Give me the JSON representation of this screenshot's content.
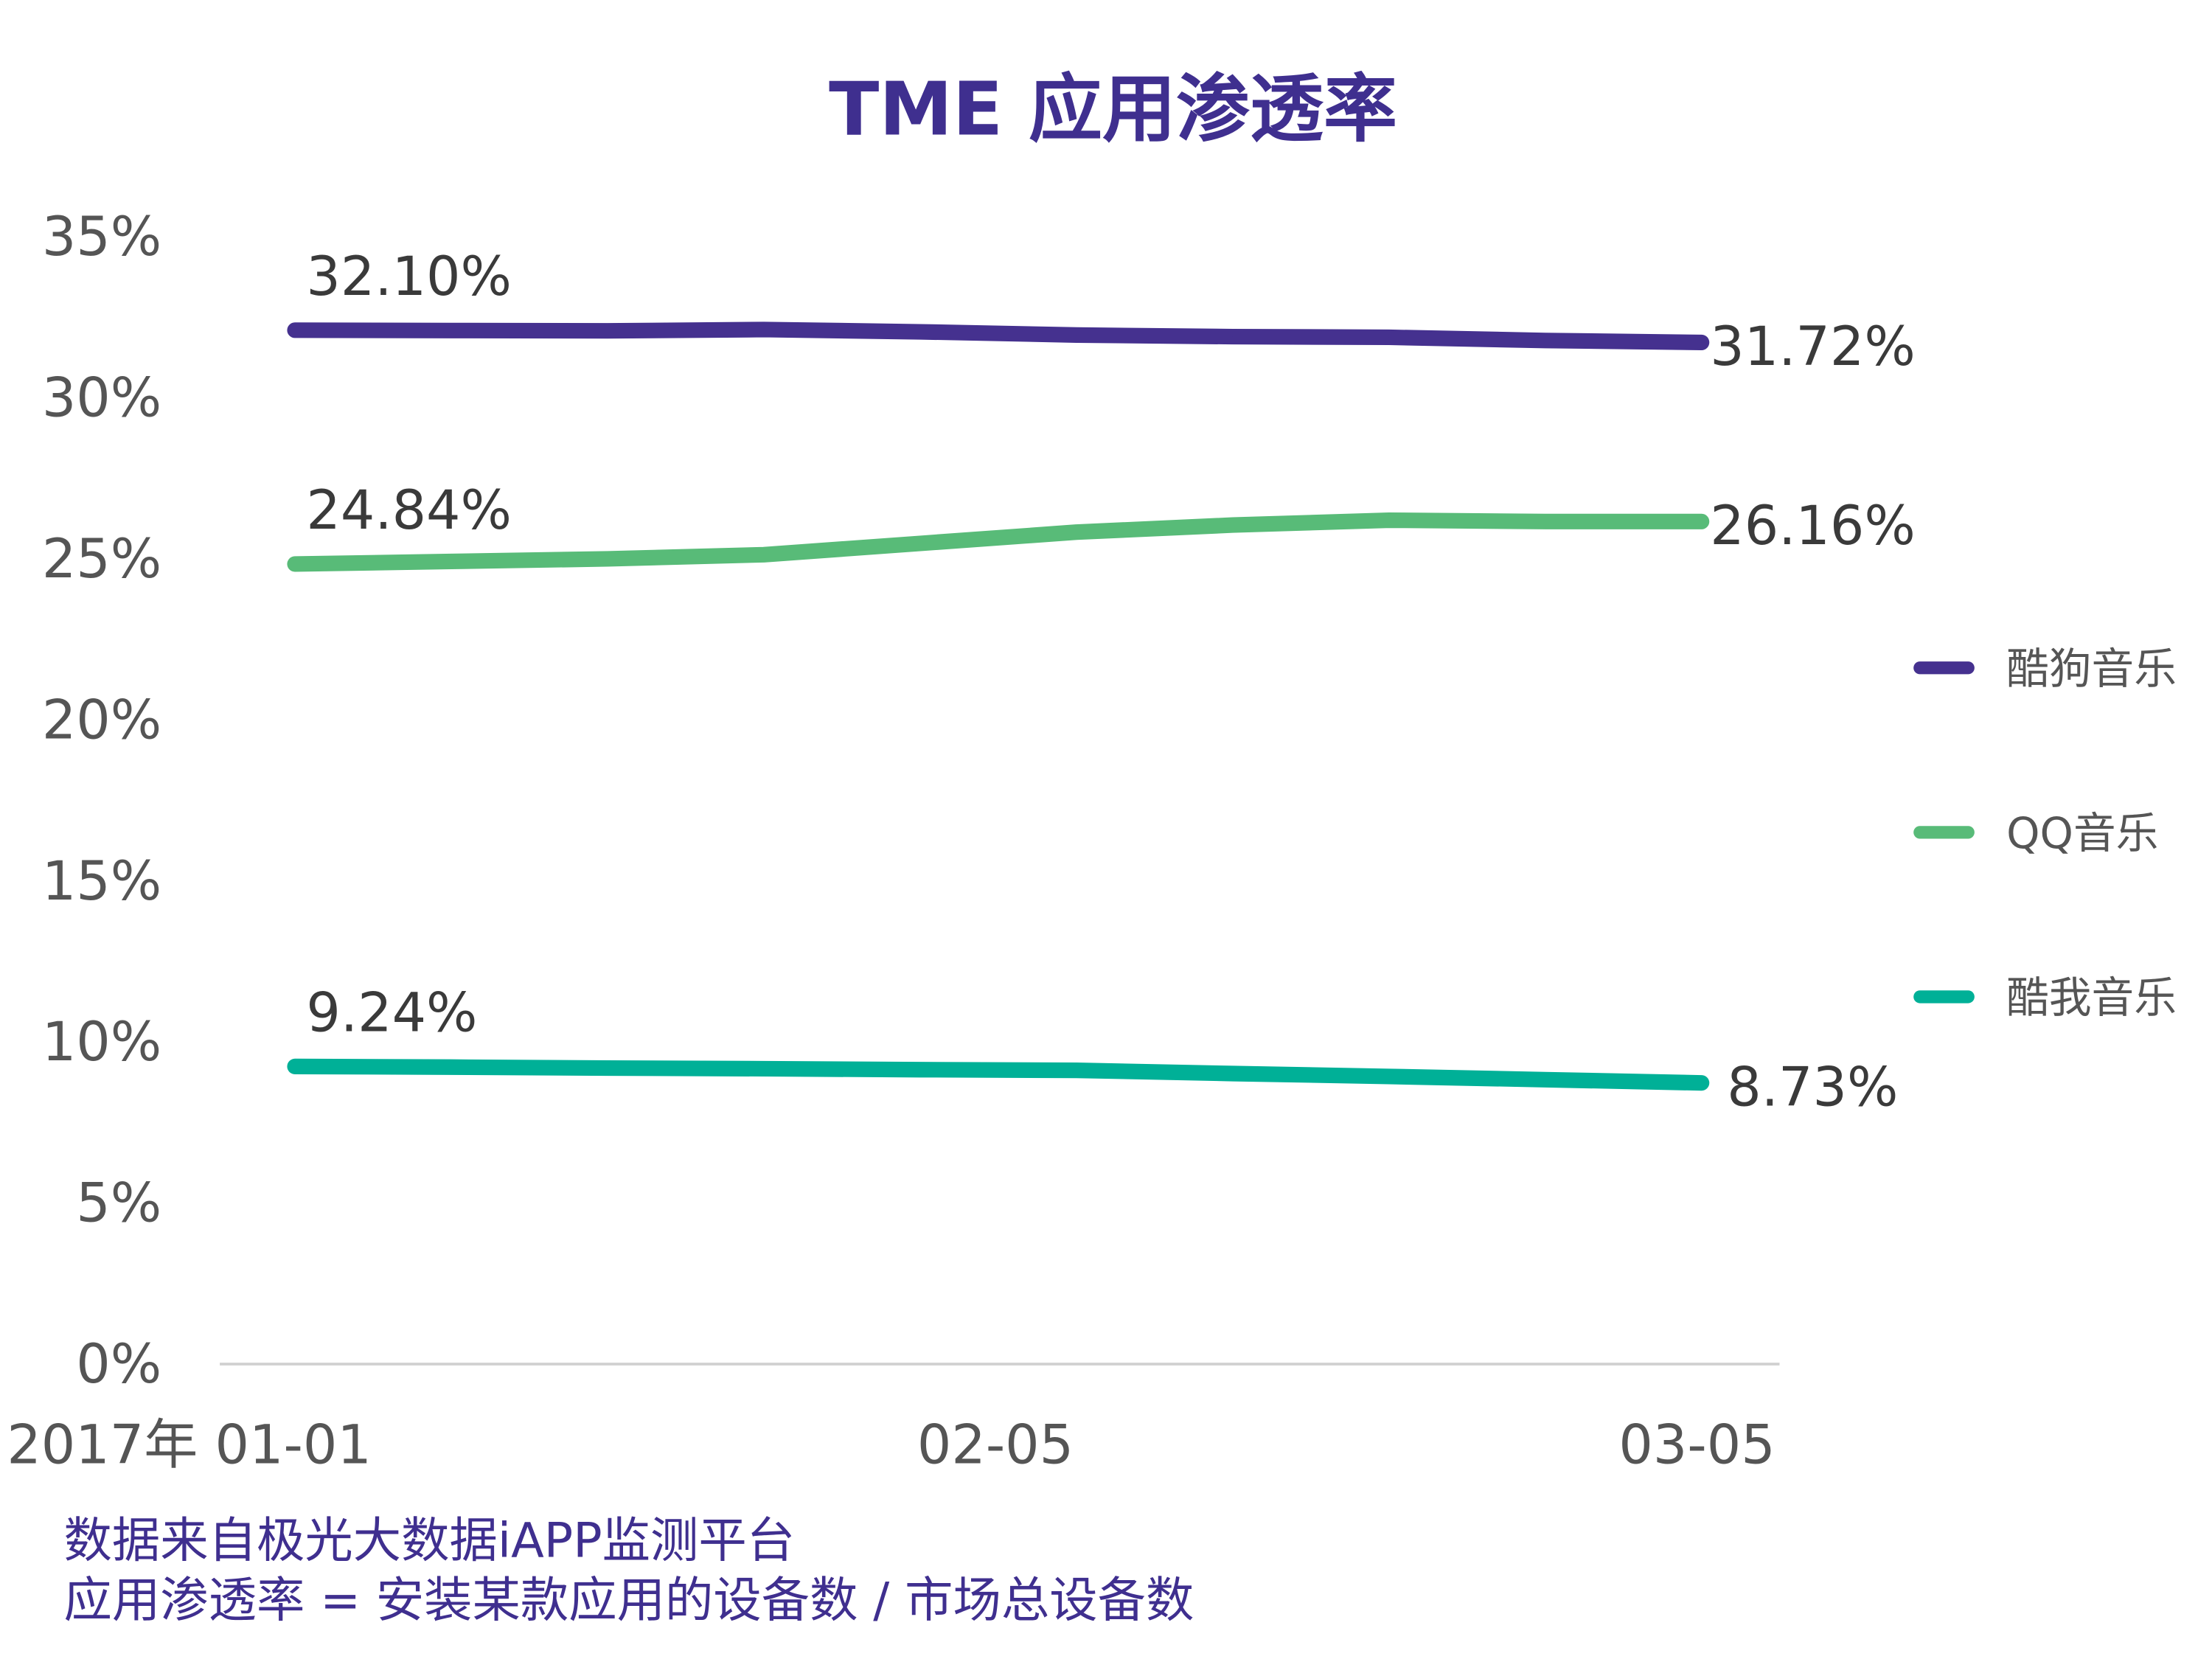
{
  "chart_data": {
    "type": "line",
    "title": "TME 应用渗透率",
    "xlabel": "",
    "ylabel": "",
    "x": [
      "01-01",
      "01-08",
      "01-15",
      "01-22",
      "01-29",
      "02-05",
      "02-12",
      "02-19",
      "02-26",
      "03-05"
    ],
    "x_tick_labels": [
      {
        "x": "01-01",
        "label": "2017年 01-01"
      },
      {
        "x": "02-05",
        "label": "02-05"
      },
      {
        "x": "03-05",
        "label": "03-05"
      }
    ],
    "ylim": [
      0,
      35
    ],
    "y_ticks": [
      0,
      5,
      10,
      15,
      20,
      25,
      30,
      35
    ],
    "y_tick_labels": [
      "0%",
      "5%",
      "10%",
      "15%",
      "20%",
      "25%",
      "30%",
      "35%"
    ],
    "grid": false,
    "legend_position": "right",
    "series": [
      {
        "name": "酷狗音乐",
        "color": "#45318f",
        "values": [
          32.1,
          32.09,
          32.08,
          32.12,
          32.05,
          31.95,
          31.9,
          31.88,
          31.78,
          31.72
        ],
        "start_label": "32.10%",
        "end_label": "31.72%"
      },
      {
        "name": "QQ音乐",
        "color": "#58bb78",
        "values": [
          24.84,
          24.92,
          25.0,
          25.13,
          25.48,
          25.83,
          26.05,
          26.2,
          26.16,
          26.16
        ],
        "start_label": "24.84%",
        "end_label": "26.16%"
      },
      {
        "name": "酷我音乐",
        "color": "#00b097",
        "values": [
          9.24,
          9.22,
          9.19,
          9.17,
          9.14,
          9.12,
          9.02,
          8.93,
          8.83,
          8.73
        ],
        "start_label": "9.24%",
        "end_label": "8.73%"
      }
    ]
  },
  "footnotes": {
    "source": "数据来自极光大数据iAPP监测平台",
    "definition": "应用渗透率 = 安装某款应用的设备数 / 市场总设备数"
  }
}
